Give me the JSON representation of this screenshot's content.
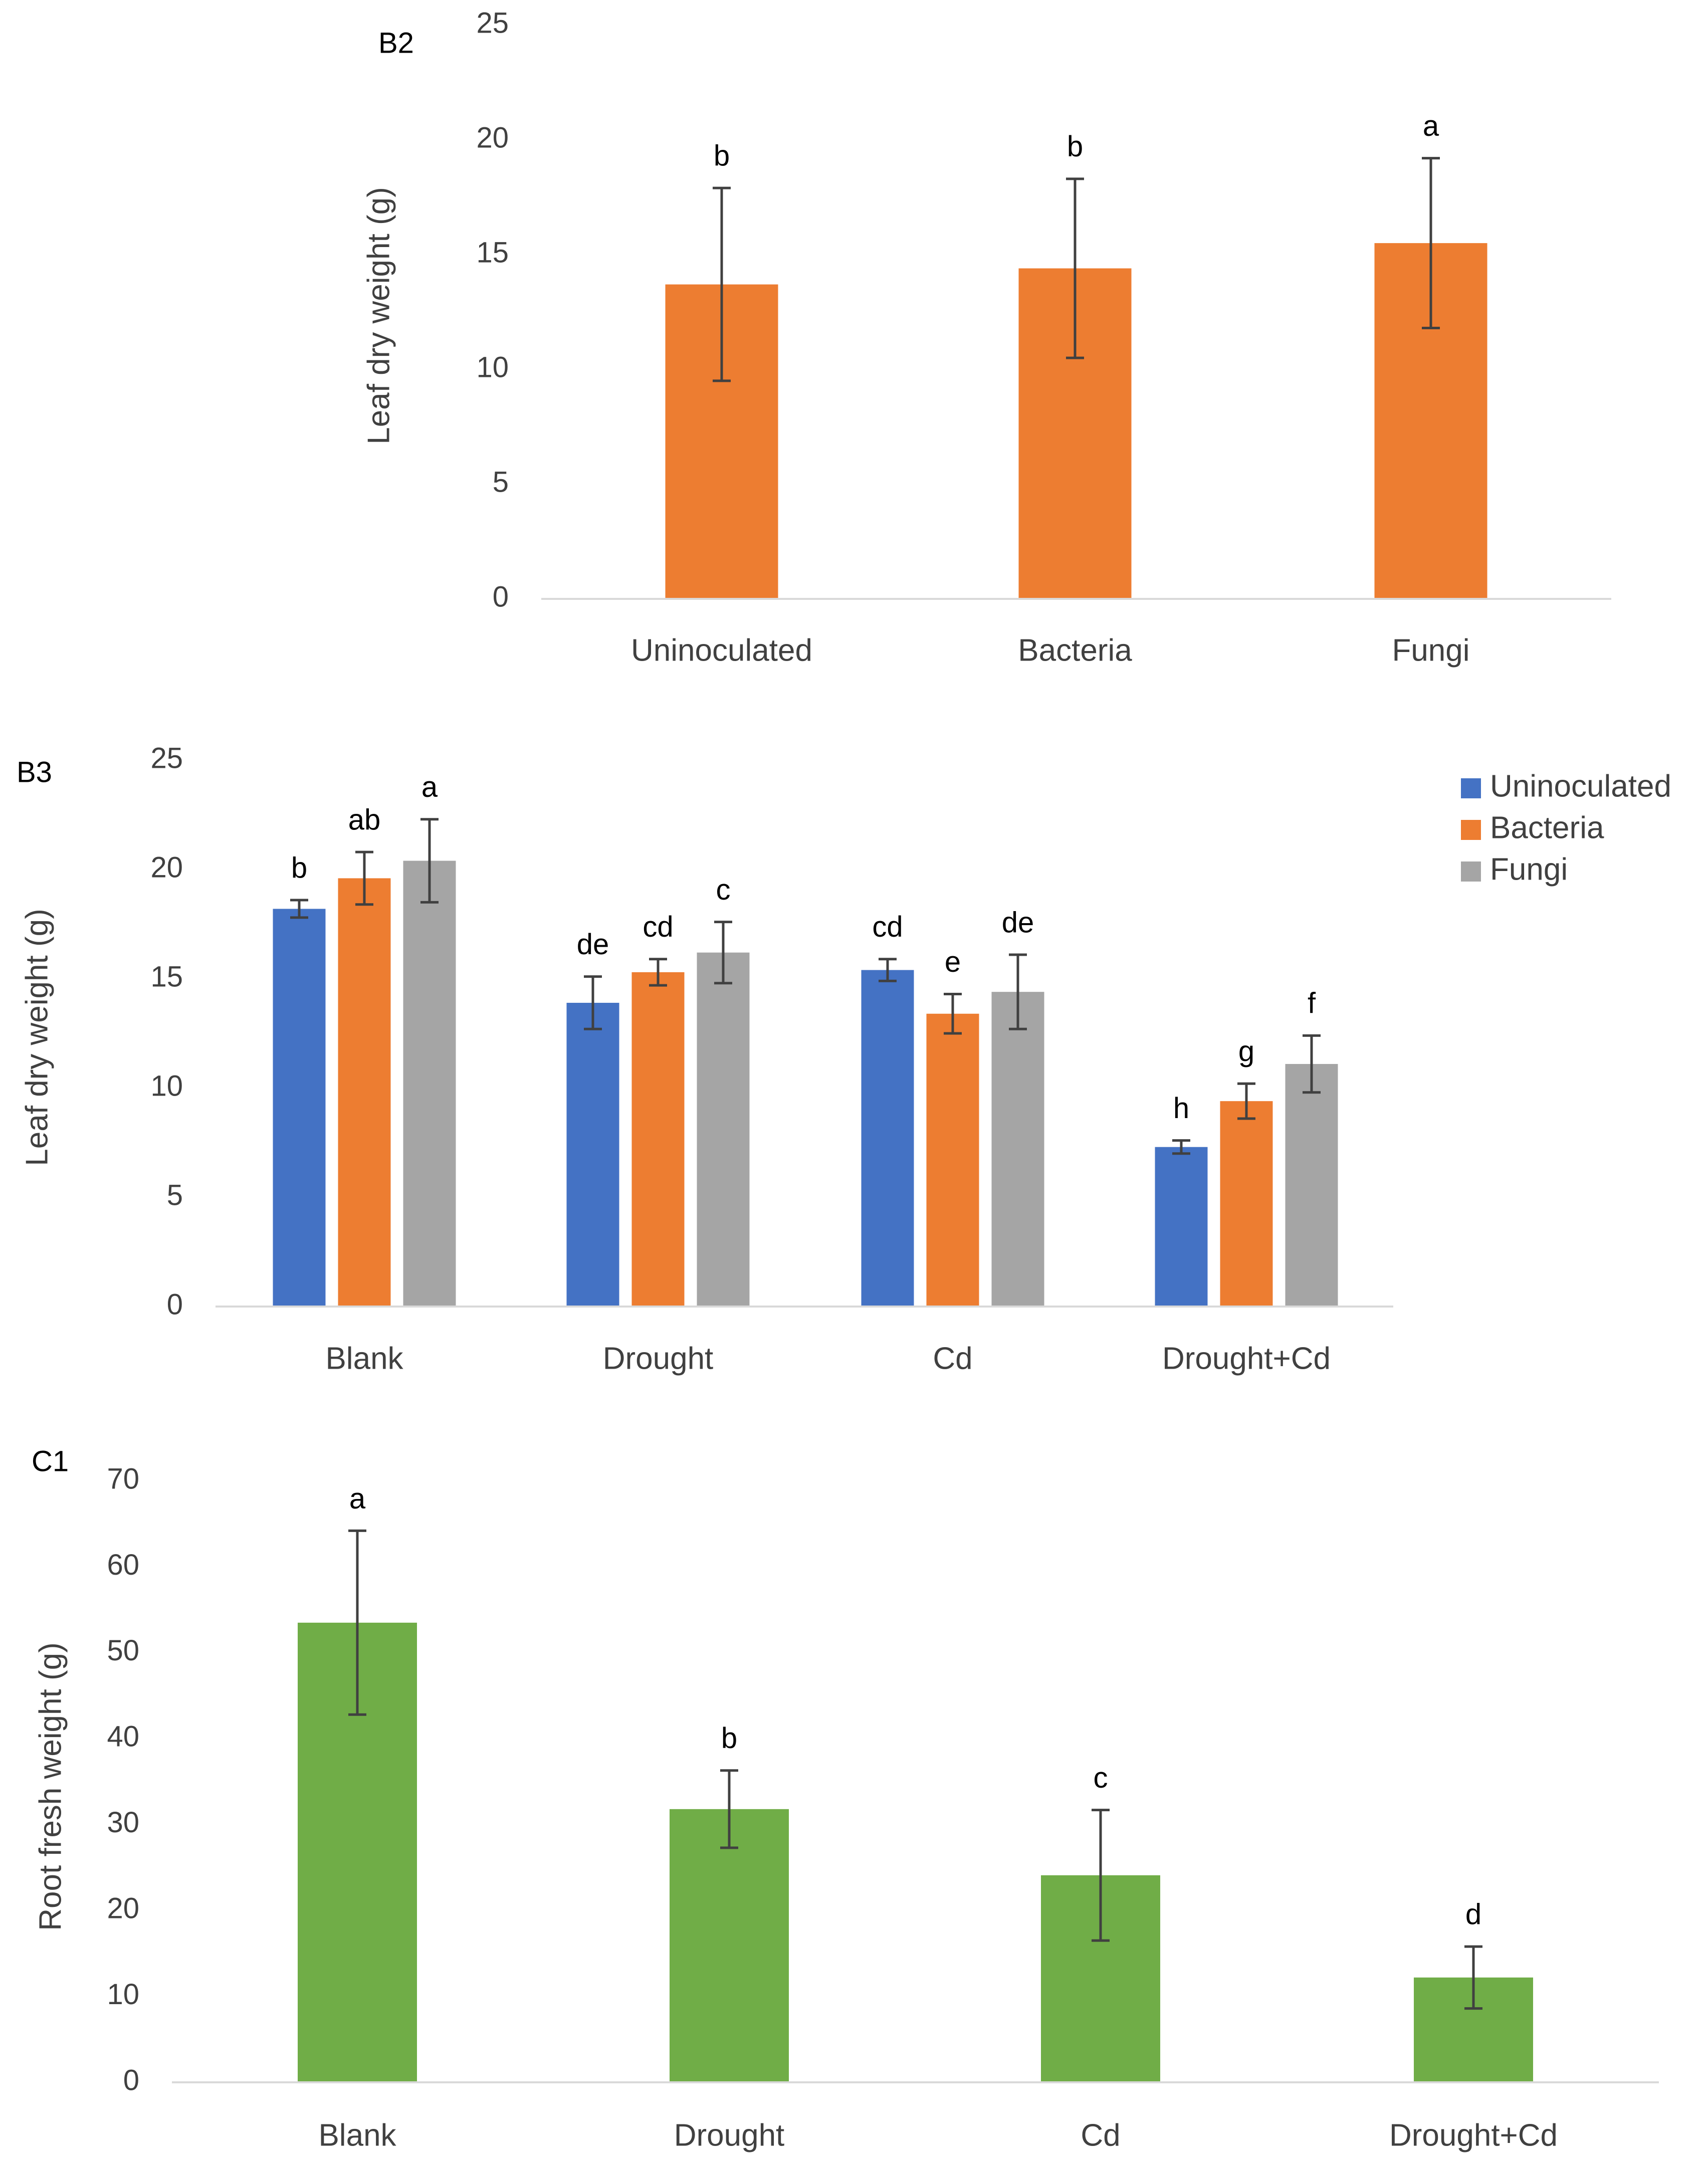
{
  "colors": {
    "uninoculated": "#4472C4",
    "bacteria": "#ED7D31",
    "fungi": "#A5A5A5",
    "green": "#70AD47",
    "axis": "#D9D9D9",
    "text": "#404040",
    "error": "#404040"
  },
  "chart_data": [
    {
      "panel": "B2",
      "type": "bar",
      "title": "",
      "xlabel": "",
      "ylabel": "Leaf dry weight (g)",
      "ylim": [
        0,
        25
      ],
      "yticks": [
        0,
        5,
        10,
        15,
        20,
        25
      ],
      "grid": false,
      "categories": [
        "Uninoculated",
        "Bacteria",
        "Fungi"
      ],
      "series": [
        {
          "name": "Leaf dry weight",
          "color_key": "bacteria",
          "values": [
            13.7,
            14.4,
            15.5
          ],
          "errors": [
            4.2,
            3.9,
            3.7
          ],
          "labels": [
            "b",
            "b",
            "a"
          ]
        }
      ],
      "legend": null
    },
    {
      "panel": "B3",
      "type": "bar",
      "title": "",
      "xlabel": "",
      "ylabel": "Leaf dry weight (g)",
      "ylim": [
        0,
        25
      ],
      "yticks": [
        0,
        5,
        10,
        15,
        20,
        25
      ],
      "grid": false,
      "categories": [
        "Blank",
        "Drought",
        "Cd",
        "Drought+Cd"
      ],
      "series": [
        {
          "name": "Uninoculated",
          "color_key": "uninoculated",
          "values": [
            18.2,
            13.9,
            15.4,
            7.3
          ],
          "errors": [
            0.4,
            1.2,
            0.5,
            0.3
          ],
          "labels": [
            "b",
            "de",
            "cd",
            "h"
          ]
        },
        {
          "name": "Bacteria",
          "color_key": "bacteria",
          "values": [
            19.6,
            15.3,
            13.4,
            9.4
          ],
          "errors": [
            1.2,
            0.6,
            0.9,
            0.8
          ],
          "labels": [
            "ab",
            "cd",
            "e",
            "g"
          ]
        },
        {
          "name": "Fungi",
          "color_key": "fungi",
          "values": [
            20.4,
            16.2,
            14.4,
            11.1
          ],
          "errors": [
            1.9,
            1.4,
            1.7,
            1.3
          ],
          "labels": [
            "a",
            "c",
            "de",
            "f"
          ]
        }
      ],
      "legend": "top-right"
    },
    {
      "panel": "C1",
      "type": "bar",
      "title": "",
      "xlabel": "",
      "ylabel": "Root fresh weight (g)",
      "ylim": [
        0,
        70
      ],
      "yticks": [
        0,
        10,
        20,
        30,
        40,
        50,
        60,
        70
      ],
      "grid": false,
      "categories": [
        "Blank",
        "Drought",
        "Cd",
        "Drought+Cd"
      ],
      "series": [
        {
          "name": "Root fresh weight",
          "color_key": "green",
          "values": [
            53.5,
            31.8,
            24.1,
            12.2
          ],
          "errors": [
            10.7,
            4.5,
            7.6,
            3.6
          ],
          "labels": [
            "a",
            "b",
            "c",
            "d"
          ]
        }
      ],
      "legend": null
    }
  ]
}
